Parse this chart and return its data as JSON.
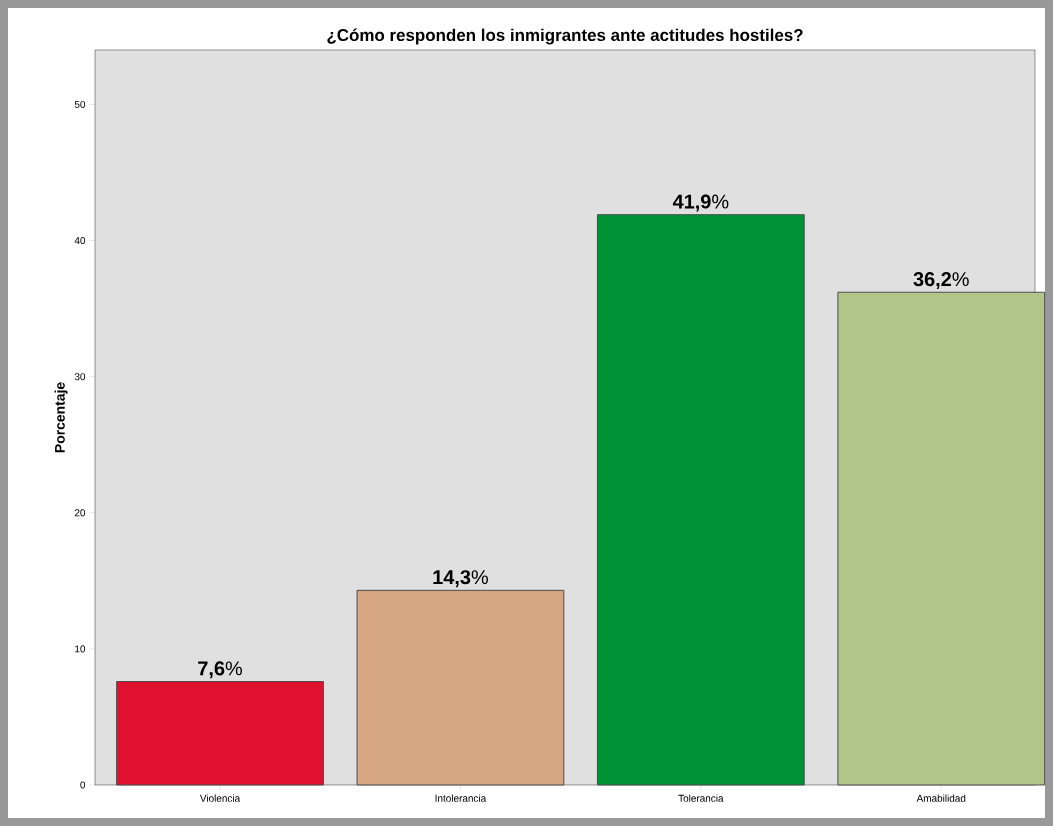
{
  "chart_data": {
    "type": "bar",
    "title": "¿Cómo responden los inmigrantes ante actitudes hostiles?",
    "ylabel": "Porcentaje",
    "categories": [
      "Violencia",
      "Intolerancia",
      "Tolerancia",
      "Amabilidad"
    ],
    "values": [
      7.6,
      14.3,
      41.9,
      36.2
    ],
    "colors": [
      "#e0102f",
      "#d6a682",
      "#009237",
      "#b3c68a"
    ],
    "value_labels": [
      "**7,6**%",
      "**14,3**%",
      "**41,9**%",
      "**36,2**%"
    ],
    "ylim": [
      0,
      54
    ],
    "yticks": [
      0,
      10,
      20,
      30,
      40,
      50
    ]
  }
}
